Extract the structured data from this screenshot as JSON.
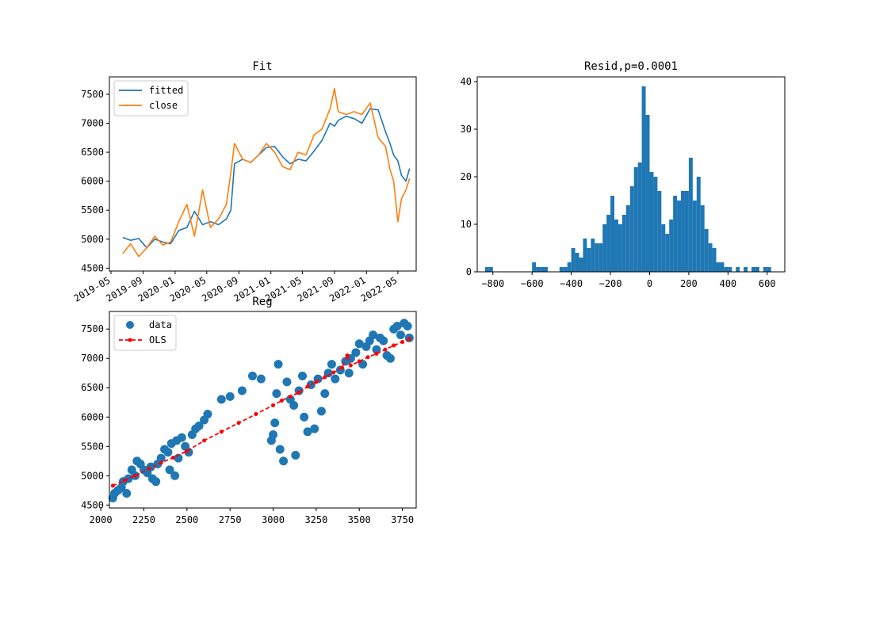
{
  "chart_data": [
    {
      "id": "fit",
      "type": "line",
      "title": "Fit",
      "xlabel": "",
      "ylabel": "",
      "x_ticks": [
        "2019-05",
        "2019-09",
        "2020-01",
        "2020-05",
        "2020-09",
        "2021-01",
        "2021-05",
        "2021-09",
        "2022-01",
        "2022-05"
      ],
      "ylim": [
        4450,
        7800
      ],
      "y_ticks": [
        4500,
        5000,
        5500,
        6000,
        6500,
        7000,
        7500
      ],
      "x": [
        "2019-06-15",
        "2019-07-15",
        "2019-08-15",
        "2019-09-15",
        "2019-10-15",
        "2019-11-15",
        "2019-12-15",
        "2020-01-15",
        "2020-02-15",
        "2020-03-15",
        "2020-04-15",
        "2020-05-15",
        "2020-06-15",
        "2020-07-15",
        "2020-08-01",
        "2020-08-15",
        "2020-09-15",
        "2020-10-15",
        "2020-11-15",
        "2020-12-15",
        "2021-01-15",
        "2021-02-15",
        "2021-03-15",
        "2021-04-15",
        "2021-05-15",
        "2021-06-15",
        "2021-07-15",
        "2021-08-15",
        "2021-09-01",
        "2021-09-15",
        "2021-10-15",
        "2021-11-15",
        "2021-12-15",
        "2022-01-15",
        "2022-02-15",
        "2022-03-15",
        "2022-04-01",
        "2022-04-15",
        "2022-05-01",
        "2022-05-15",
        "2022-06-01",
        "2022-06-15"
      ],
      "series": [
        {
          "name": "fitted",
          "color": "#1f77b4",
          "values": [
            5030,
            4980,
            5010,
            4850,
            5000,
            4950,
            4920,
            5150,
            5200,
            5480,
            5250,
            5300,
            5250,
            5350,
            5500,
            6300,
            6380,
            6320,
            6450,
            6580,
            6600,
            6420,
            6300,
            6380,
            6350,
            6520,
            6700,
            7000,
            6950,
            7050,
            7120,
            7080,
            7000,
            7250,
            7230,
            6850,
            6650,
            6450,
            6350,
            6100,
            6000,
            6220
          ]
        },
        {
          "name": "close",
          "color": "#ff7f0e",
          "values": [
            4750,
            4920,
            4700,
            4850,
            5050,
            4900,
            4950,
            5300,
            5600,
            5050,
            5850,
            5200,
            5350,
            5600,
            6150,
            6650,
            6380,
            6320,
            6450,
            6650,
            6500,
            6250,
            6200,
            6500,
            6450,
            6800,
            6900,
            7250,
            7600,
            7200,
            7150,
            7200,
            7150,
            7350,
            6750,
            6600,
            6200,
            6000,
            5300,
            5700,
            5850,
            6050
          ]
        }
      ],
      "legend": "upper-left"
    },
    {
      "id": "resid",
      "type": "bar",
      "title": "Resid,p=0.0001",
      "xlabel": "",
      "ylabel": "",
      "x_ticks": [
        "−800",
        "−600",
        "−400",
        "−200",
        "0",
        "200",
        "400",
        "600"
      ],
      "xlim": [
        -880,
        690
      ],
      "ylim": [
        0,
        41
      ],
      "y_ticks": [
        0,
        10,
        20,
        30,
        40
      ],
      "bin_centers": [
        -830,
        -810,
        -590,
        -570,
        -550,
        -530,
        -450,
        -430,
        -410,
        -390,
        -370,
        -350,
        -330,
        -310,
        -290,
        -270,
        -250,
        -230,
        -210,
        -190,
        -170,
        -150,
        -130,
        -110,
        -90,
        -70,
        -50,
        -30,
        -10,
        10,
        30,
        50,
        70,
        90,
        110,
        130,
        150,
        170,
        190,
        210,
        230,
        250,
        270,
        290,
        310,
        330,
        350,
        370,
        390,
        410,
        450,
        490,
        530,
        550,
        590,
        610
      ],
      "counts": [
        1,
        1,
        2,
        1,
        1,
        1,
        1,
        1,
        2,
        5,
        4,
        3,
        7,
        5,
        7,
        6,
        6,
        10,
        12,
        16,
        11,
        10,
        12,
        14,
        18,
        22,
        23,
        39,
        33,
        21,
        20,
        17,
        10,
        8,
        11,
        16,
        15,
        17,
        17,
        24,
        15,
        20,
        14,
        9,
        6,
        5,
        2,
        2,
        1,
        1,
        1,
        1,
        1,
        1,
        1,
        1
      ],
      "bin_width": 20,
      "color": "#1f77b4"
    },
    {
      "id": "reg",
      "type": "scatter",
      "title": "Reg",
      "xlabel": "",
      "ylabel": "",
      "xlim": [
        2050,
        3830
      ],
      "ylim": [
        4450,
        7800
      ],
      "x_ticks": [
        2000,
        2250,
        2500,
        2750,
        3000,
        3250,
        3500,
        3750
      ],
      "y_ticks": [
        4500,
        5000,
        5500,
        6000,
        6500,
        7000,
        7500
      ],
      "series": [
        {
          "name": "data",
          "color": "#1f77b4",
          "points": [
            [
              2070,
              4620
            ],
            [
              2080,
              4700
            ],
            [
              2100,
              4750
            ],
            [
              2120,
              4800
            ],
            [
              2130,
              4900
            ],
            [
              2150,
              4700
            ],
            [
              2160,
              4950
            ],
            [
              2180,
              5100
            ],
            [
              2200,
              5000
            ],
            [
              2210,
              5250
            ],
            [
              2230,
              5200
            ],
            [
              2250,
              5100
            ],
            [
              2270,
              5050
            ],
            [
              2290,
              5150
            ],
            [
              2300,
              4950
            ],
            [
              2320,
              4900
            ],
            [
              2330,
              5200
            ],
            [
              2350,
              5300
            ],
            [
              2370,
              5450
            ],
            [
              2390,
              5400
            ],
            [
              2400,
              5100
            ],
            [
              2410,
              5550
            ],
            [
              2430,
              5000
            ],
            [
              2440,
              5600
            ],
            [
              2450,
              5300
            ],
            [
              2470,
              5650
            ],
            [
              2490,
              5500
            ],
            [
              2510,
              5400
            ],
            [
              2530,
              5700
            ],
            [
              2550,
              5800
            ],
            [
              2570,
              5850
            ],
            [
              2600,
              5950
            ],
            [
              2620,
              6050
            ],
            [
              2700,
              6300
            ],
            [
              2750,
              6350
            ],
            [
              2820,
              6450
            ],
            [
              2880,
              6700
            ],
            [
              2930,
              6650
            ],
            [
              2990,
              5600
            ],
            [
              3000,
              5700
            ],
            [
              3010,
              5900
            ],
            [
              3020,
              6400
            ],
            [
              3030,
              6900
            ],
            [
              3040,
              5450
            ],
            [
              3060,
              5250
            ],
            [
              3080,
              6600
            ],
            [
              3100,
              6300
            ],
            [
              3120,
              6200
            ],
            [
              3130,
              5350
            ],
            [
              3150,
              6450
            ],
            [
              3170,
              6700
            ],
            [
              3180,
              6000
            ],
            [
              3200,
              5750
            ],
            [
              3220,
              6550
            ],
            [
              3240,
              5800
            ],
            [
              3260,
              6650
            ],
            [
              3280,
              6100
            ],
            [
              3300,
              6400
            ],
            [
              3320,
              6750
            ],
            [
              3340,
              6900
            ],
            [
              3360,
              6650
            ],
            [
              3390,
              6800
            ],
            [
              3420,
              6950
            ],
            [
              3440,
              6750
            ],
            [
              3450,
              7000
            ],
            [
              3480,
              7100
            ],
            [
              3500,
              7250
            ],
            [
              3520,
              6900
            ],
            [
              3540,
              7200
            ],
            [
              3560,
              7300
            ],
            [
              3580,
              7400
            ],
            [
              3600,
              7150
            ],
            [
              3620,
              7350
            ],
            [
              3640,
              7300
            ],
            [
              3660,
              7050
            ],
            [
              3680,
              7000
            ],
            [
              3700,
              7500
            ],
            [
              3720,
              7550
            ],
            [
              3740,
              7400
            ],
            [
              3760,
              7600
            ],
            [
              3780,
              7550
            ],
            [
              3790,
              7350
            ]
          ]
        },
        {
          "name": "OLS",
          "color": "#ff0000",
          "points": [
            [
              2070,
              4830
            ],
            [
              2140,
              4920
            ],
            [
              2200,
              5000
            ],
            [
              2280,
              5120
            ],
            [
              2350,
              5220
            ],
            [
              2420,
              5310
            ],
            [
              2500,
              5420
            ],
            [
              2600,
              5600
            ],
            [
              2700,
              5750
            ],
            [
              2800,
              5900
            ],
            [
              2900,
              6050
            ],
            [
              3000,
              6200
            ],
            [
              3050,
              6280
            ],
            [
              3100,
              6350
            ],
            [
              3150,
              6420
            ],
            [
              3200,
              6520
            ],
            [
              3250,
              6600
            ],
            [
              3300,
              6680
            ],
            [
              3350,
              6760
            ],
            [
              3400,
              6840
            ],
            [
              3430,
              7050
            ],
            [
              3450,
              6880
            ],
            [
              3500,
              6950
            ],
            [
              3550,
              7020
            ],
            [
              3600,
              7080
            ],
            [
              3650,
              7150
            ],
            [
              3700,
              7220
            ],
            [
              3750,
              7280
            ],
            [
              3790,
              7330
            ]
          ]
        }
      ],
      "legend": "upper-left"
    }
  ]
}
